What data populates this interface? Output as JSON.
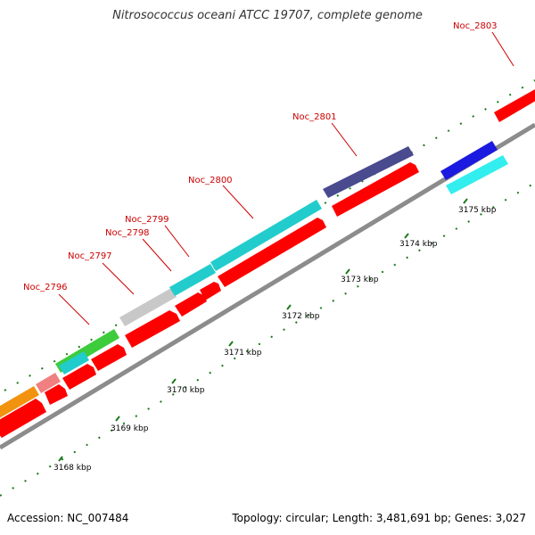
{
  "title": "Nitrosococcus oceani ATCC 19707, complete genome",
  "accession": "Accession: NC_007484",
  "topology": "Topology: circular; Length: 3,481,691 bp; Genes: 3,027",
  "colors": {
    "backbone": "#999999",
    "cds": "#ff0000",
    "label": "#cc0000",
    "tick": "#1a7a1a"
  },
  "scale_labels": [
    "3168 kbp",
    "3169 kbp",
    "3170 kbp",
    "3171 kbp",
    "3172 kbp",
    "3173 kbp",
    "3174 kbp",
    "3175 kbp"
  ],
  "gene_labels": [
    "Noc_2796",
    "Noc_2797",
    "Noc_2798",
    "Noc_2799",
    "Noc_2800",
    "Noc_2801",
    "Noc_2803"
  ],
  "cog_blocks": [
    {
      "color": "#f2930f"
    },
    {
      "color": "#f08080"
    },
    {
      "color": "#3ccc3c"
    },
    {
      "color": "#c8c8c8"
    },
    {
      "color": "#22cccc"
    },
    {
      "color": "#22cccc"
    },
    {
      "color": "#4a4a8f"
    },
    {
      "color": "#1a1ae0"
    },
    {
      "color": "#33eeee"
    }
  ]
}
